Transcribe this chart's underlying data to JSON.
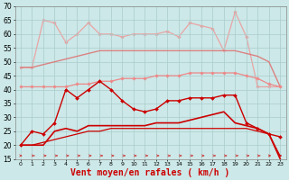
{
  "xlabel": "Vent moyen/en rafales ( km/h )",
  "background_color": "#cce8e8",
  "grid_color": "#aacccc",
  "x": [
    0,
    1,
    2,
    3,
    4,
    5,
    6,
    7,
    8,
    9,
    10,
    11,
    12,
    13,
    14,
    15,
    16,
    17,
    18,
    19,
    20,
    21,
    22,
    23
  ],
  "ylim": [
    15,
    70
  ],
  "yticks": [
    15,
    20,
    25,
    30,
    35,
    40,
    45,
    50,
    55,
    60,
    65,
    70
  ],
  "lines": [
    {
      "values": [
        20,
        25,
        24,
        28,
        40,
        37,
        40,
        43,
        40,
        36,
        33,
        32,
        33,
        36,
        36,
        37,
        37,
        37,
        38,
        38,
        28,
        26,
        24,
        23
      ],
      "color": "#cc0000",
      "marker": "D",
      "markersize": 2.0,
      "linewidth": 1.0,
      "alpha": 1.0,
      "zorder": 6
    },
    {
      "values": [
        20,
        20,
        20,
        25,
        26,
        25,
        27,
        27,
        27,
        27,
        27,
        27,
        28,
        28,
        28,
        29,
        30,
        31,
        32,
        28,
        27,
        26,
        24,
        15
      ],
      "color": "#cc0000",
      "marker": null,
      "markersize": 0,
      "linewidth": 1.2,
      "alpha": 1.0,
      "zorder": 5
    },
    {
      "values": [
        20,
        20,
        21,
        22,
        23,
        24,
        25,
        25,
        26,
        26,
        26,
        26,
        26,
        26,
        26,
        26,
        26,
        26,
        26,
        26,
        26,
        25,
        24,
        16
      ],
      "color": "#cc0000",
      "marker": null,
      "markersize": 0,
      "linewidth": 0.9,
      "alpha": 1.0,
      "zorder": 4
    },
    {
      "values": [
        41,
        41,
        41,
        41,
        41,
        42,
        42,
        43,
        43,
        44,
        44,
        44,
        45,
        45,
        45,
        46,
        46,
        46,
        46,
        46,
        45,
        44,
        42,
        41
      ],
      "color": "#ee8888",
      "marker": "D",
      "markersize": 1.8,
      "linewidth": 0.9,
      "alpha": 1.0,
      "zorder": 3
    },
    {
      "values": [
        48,
        48,
        49,
        50,
        51,
        52,
        53,
        54,
        54,
        54,
        54,
        54,
        54,
        54,
        54,
        54,
        54,
        54,
        54,
        54,
        53,
        52,
        50,
        41
      ],
      "color": "#dd7777",
      "marker": null,
      "markersize": 0,
      "linewidth": 1.0,
      "alpha": 0.9,
      "zorder": 2
    },
    {
      "values": [
        48,
        48,
        65,
        64,
        57,
        60,
        64,
        60,
        60,
        59,
        60,
        60,
        60,
        61,
        59,
        64,
        63,
        62,
        54,
        68,
        59,
        41,
        41,
        41
      ],
      "color": "#ee9999",
      "marker": "D",
      "markersize": 1.8,
      "linewidth": 0.9,
      "alpha": 0.85,
      "zorder": 1
    }
  ],
  "arrows": {
    "y_data": 16.2,
    "color": "#cc2222",
    "sizes": [
      0.5,
      0.8,
      1.0,
      1.0,
      1.0,
      1.0,
      1.0,
      1.0,
      1.0,
      1.0,
      1.0,
      1.0,
      1.0,
      1.0,
      1.0,
      1.0,
      1.0,
      1.0,
      1.0,
      1.0,
      0.9,
      0.8,
      0.7,
      0.6
    ]
  },
  "fontsize_label": 7,
  "tick_fontsize": 5.5
}
